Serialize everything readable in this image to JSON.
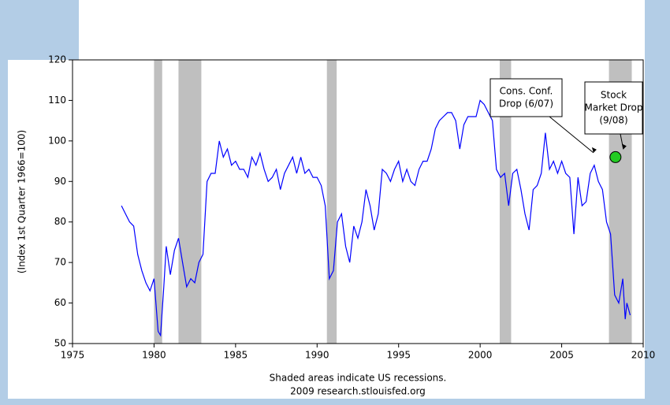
{
  "chart_data": {
    "type": "line",
    "y_label": "(Index 1st Quarter 1966=100)",
    "footer": [
      "Shaded areas indicate US recessions.",
      "2009 research.stlouisfed.org"
    ],
    "xlim": [
      1975,
      2010
    ],
    "xticks": [
      1975,
      1980,
      1985,
      1990,
      1995,
      2000,
      2005,
      2010
    ],
    "ylim": [
      50,
      120
    ],
    "yticks": [
      50,
      60,
      70,
      80,
      90,
      100,
      110,
      120
    ],
    "recessions": [
      [
        1980.0,
        1980.5
      ],
      [
        1981.5,
        1982.9
      ],
      [
        1990.6,
        1991.2
      ],
      [
        2001.2,
        2001.9
      ],
      [
        2007.9,
        2009.3
      ]
    ],
    "recession_color": "#bfbfbf",
    "series": [
      {
        "color": "#0000ff",
        "x": [
          1978.0,
          1978.25,
          1978.5,
          1978.75,
          1979.0,
          1979.25,
          1979.5,
          1979.75,
          1980.0,
          1980.25,
          1980.4,
          1980.6,
          1980.75,
          1981.0,
          1981.25,
          1981.5,
          1981.75,
          1982.0,
          1982.25,
          1982.5,
          1982.75,
          1983.0,
          1983.25,
          1983.5,
          1983.75,
          1984.0,
          1984.25,
          1984.5,
          1984.75,
          1985.0,
          1985.25,
          1985.5,
          1985.75,
          1986.0,
          1986.25,
          1986.5,
          1986.75,
          1987.0,
          1987.25,
          1987.5,
          1987.75,
          1988.0,
          1988.25,
          1988.5,
          1988.75,
          1989.0,
          1989.25,
          1989.5,
          1989.75,
          1990.0,
          1990.25,
          1990.5,
          1990.75,
          1991.0,
          1991.25,
          1991.5,
          1991.75,
          1992.0,
          1992.25,
          1992.5,
          1992.75,
          1993.0,
          1993.25,
          1993.5,
          1993.75,
          1994.0,
          1994.25,
          1994.5,
          1994.75,
          1995.0,
          1995.25,
          1995.5,
          1995.75,
          1996.0,
          1996.25,
          1996.5,
          1996.75,
          1997.0,
          1997.25,
          1997.5,
          1997.75,
          1998.0,
          1998.25,
          1998.5,
          1998.75,
          1999.0,
          1999.25,
          1999.5,
          1999.75,
          2000.0,
          2000.25,
          2000.5,
          2000.75,
          2001.0,
          2001.25,
          2001.5,
          2001.75,
          2002.0,
          2002.25,
          2002.5,
          2002.75,
          2003.0,
          2003.25,
          2003.5,
          2003.75,
          2004.0,
          2004.25,
          2004.5,
          2004.75,
          2005.0,
          2005.25,
          2005.5,
          2005.75,
          2006.0,
          2006.25,
          2006.5,
          2006.75,
          2007.0,
          2007.25,
          2007.5,
          2007.75,
          2008.0,
          2008.25,
          2008.5,
          2008.75,
          2008.9,
          2009.0,
          2009.2
        ],
        "values": [
          84,
          82,
          80,
          79,
          72,
          68,
          65,
          63,
          66,
          53,
          52,
          64,
          74,
          67,
          73,
          76,
          70,
          64,
          66,
          65,
          70,
          72,
          90,
          92,
          92,
          100,
          96,
          98,
          94,
          95,
          93,
          93,
          91,
          96,
          94,
          97,
          93,
          90,
          91,
          93,
          88,
          92,
          94,
          96,
          92,
          96,
          92,
          93,
          91,
          91,
          89,
          84,
          66,
          68,
          80,
          82,
          74,
          70,
          79,
          76,
          80,
          88,
          84,
          78,
          82,
          93,
          92,
          90,
          93,
          95,
          90,
          93,
          90,
          89,
          93,
          95,
          95,
          98,
          103,
          105,
          106,
          107,
          107,
          105,
          98,
          104,
          106,
          106,
          106,
          110,
          109,
          107,
          105,
          93,
          91,
          92,
          84,
          92,
          93,
          88,
          82,
          78,
          88,
          89,
          92,
          102,
          93,
          95,
          92,
          95,
          92,
          91,
          77,
          91,
          84,
          85,
          92,
          94,
          90,
          88,
          80,
          77,
          62,
          60,
          66,
          56,
          60,
          57
        ]
      }
    ],
    "annotations": [
      {
        "lines": [
          "Cons. Conf.",
          "Drop (6/07)"
        ],
        "x": 2006.95,
        "y": 96.5
      },
      {
        "lines": [
          "Stock",
          "Market Drop",
          "(9/08)"
        ],
        "x": 2008.3,
        "y": 96,
        "marker_color": "#22cc22"
      }
    ]
  }
}
